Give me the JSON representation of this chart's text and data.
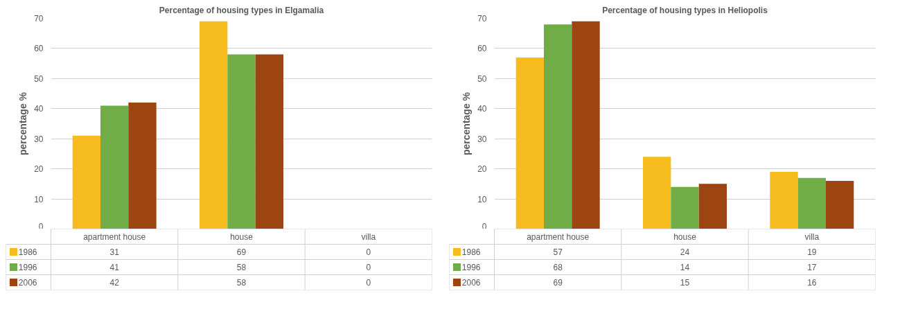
{
  "chart_data": [
    {
      "type": "bar",
      "title": "Percentage of housing types in Elgamalia",
      "ylabel": "percentage %",
      "categories": [
        "apartment house",
        "house",
        "villa"
      ],
      "series": [
        {
          "name": "1986",
          "color": "#f6bb1c",
          "values": [
            31,
            69,
            0
          ]
        },
        {
          "name": "1996",
          "color": "#70ad47",
          "values": [
            41,
            58,
            0
          ]
        },
        {
          "name": "2006",
          "color": "#9c4511",
          "values": [
            42,
            58,
            0
          ]
        }
      ],
      "ylim": [
        0,
        70
      ],
      "yticks": [
        0,
        10,
        20,
        30,
        40,
        50,
        60,
        70
      ],
      "grid": "y",
      "legend": "bottom",
      "data_labels": true,
      "tick_labels": "y"
    },
    {
      "type": "bar",
      "title": "Percentage of housing types in Heliopolis",
      "ylabel": "percentage %",
      "categories": [
        "apartment house",
        "house",
        "villa"
      ],
      "series": [
        {
          "name": "1986",
          "color": "#f6bb1c",
          "values": [
            57,
            24,
            19
          ]
        },
        {
          "name": "1996",
          "color": "#70ad47",
          "values": [
            68,
            14,
            17
          ]
        },
        {
          "name": "2006",
          "color": "#9c4511",
          "values": [
            69,
            15,
            16
          ]
        }
      ],
      "ylim": [
        0,
        70
      ],
      "yticks": [
        0,
        10,
        20,
        30,
        40,
        50,
        60,
        70
      ],
      "grid": "y",
      "legend": "bottom",
      "data_labels": true,
      "tick_labels": "y"
    }
  ]
}
